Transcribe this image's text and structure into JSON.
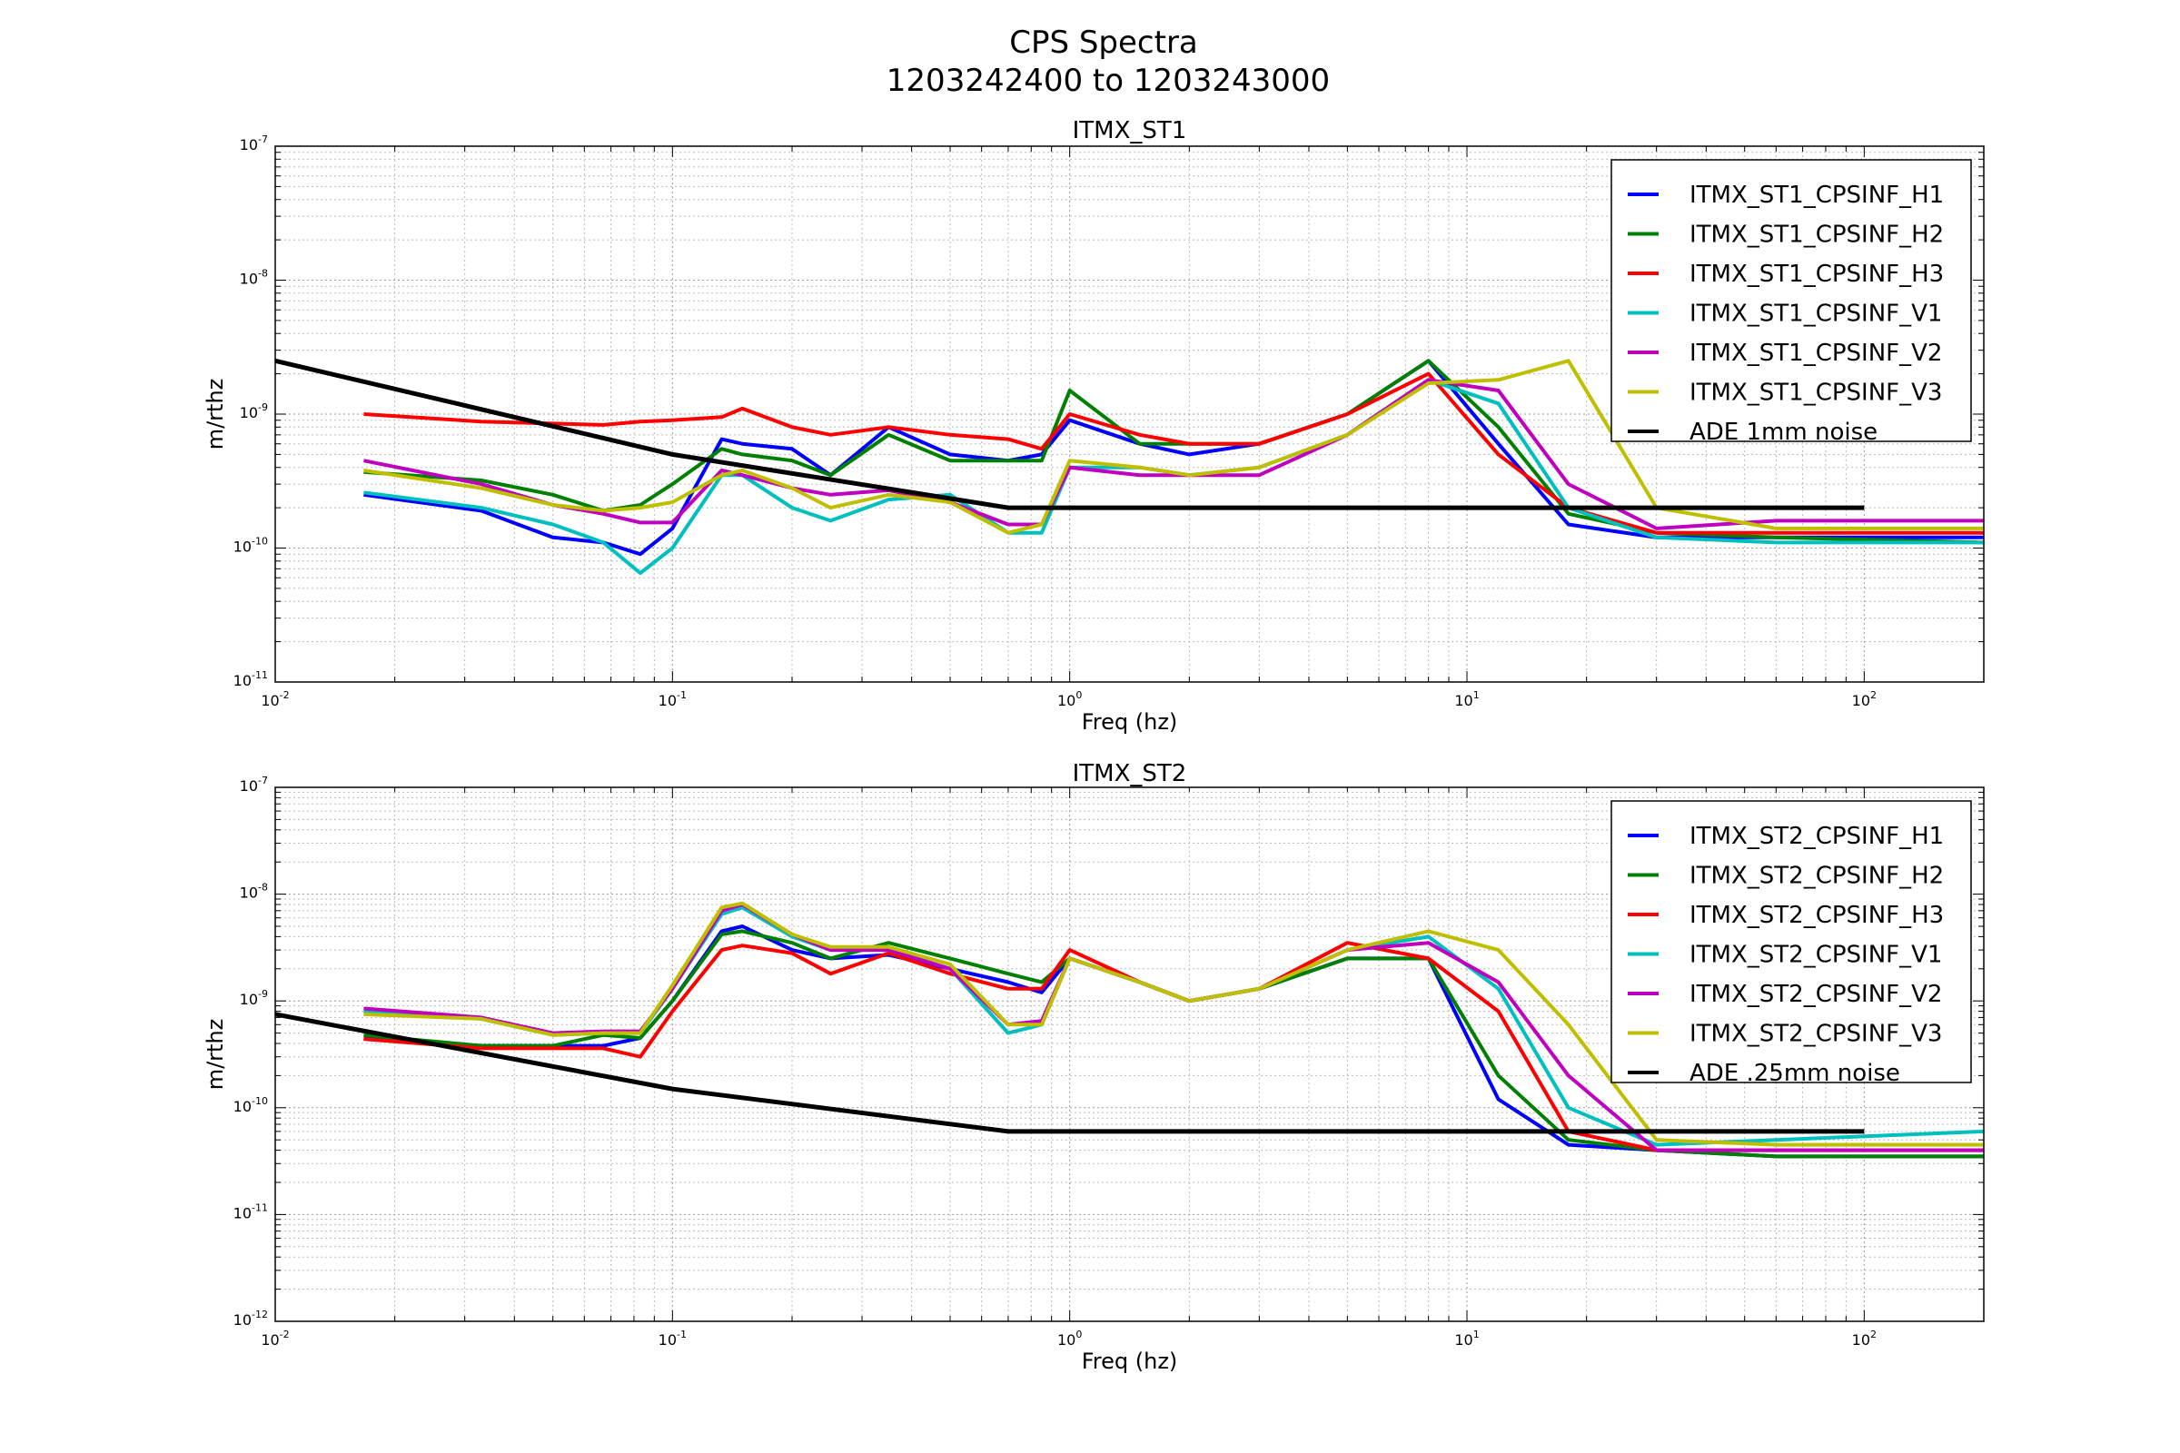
{
  "figure": {
    "title": "CPS Spectra",
    "subtitle": "1203242400 to 1203243000"
  },
  "colors": {
    "H1": "#0000ff",
    "H2": "#008000",
    "H3": "#ff0000",
    "V1": "#00bfbf",
    "V2": "#bf00bf",
    "V3": "#bfbf00",
    "noise": "#000000"
  },
  "chart_data": [
    {
      "type": "line",
      "title": "ITMX_ST1",
      "xlabel": "Freq (hz)",
      "ylabel": "m/rthz",
      "xscale": "log",
      "yscale": "log",
      "xlim": [
        0.01,
        200
      ],
      "ylim": [
        1e-11,
        1e-07
      ],
      "xtick_exponents": [
        -2,
        -1,
        0,
        1,
        2
      ],
      "ytick_exponents": [
        -11,
        -10,
        -9,
        -8,
        -7
      ],
      "grid": true,
      "legend_position": "top-right",
      "x": [
        0.0167,
        0.033,
        0.05,
        0.067,
        0.083,
        0.1,
        0.133,
        0.15,
        0.2,
        0.25,
        0.35,
        0.5,
        0.7,
        0.85,
        1,
        1.5,
        2,
        3,
        5,
        8,
        12,
        18,
        30,
        60,
        200
      ],
      "series": [
        {
          "name": "ITMX_ST1_CPSINF_H1",
          "color_key": "H1",
          "values": [
            2.5e-10,
            1.9e-10,
            1.2e-10,
            1.1e-10,
            9e-11,
            1.4e-10,
            6.5e-10,
            6e-10,
            5.5e-10,
            3.5e-10,
            8e-10,
            5e-10,
            4.5e-10,
            5e-10,
            9e-10,
            6e-10,
            5e-10,
            6e-10,
            1e-09,
            2.5e-09,
            6e-10,
            1.5e-10,
            1.2e-10,
            1.2e-10,
            1.2e-10
          ]
        },
        {
          "name": "ITMX_ST1_CPSINF_H2",
          "color_key": "H2",
          "values": [
            3.7e-10,
            3.2e-10,
            2.5e-10,
            1.9e-10,
            2.1e-10,
            3e-10,
            5.5e-10,
            5e-10,
            4.5e-10,
            3.5e-10,
            7e-10,
            4.5e-10,
            4.5e-10,
            4.5e-10,
            1.5e-09,
            6e-10,
            6e-10,
            6e-10,
            1e-09,
            2.5e-09,
            8e-10,
            1.8e-10,
            1.3e-10,
            1.2e-10,
            1.1e-10
          ]
        },
        {
          "name": "ITMX_ST1_CPSINF_H3",
          "color_key": "H3",
          "values": [
            1e-09,
            8.8e-10,
            8.5e-10,
            8.3e-10,
            8.8e-10,
            9e-10,
            9.5e-10,
            1.1e-09,
            8e-10,
            7e-10,
            8e-10,
            7e-10,
            6.5e-10,
            5.5e-10,
            1e-09,
            7e-10,
            6e-10,
            6e-10,
            1e-09,
            2e-09,
            5e-10,
            2e-10,
            1.3e-10,
            1.3e-10,
            1.3e-10
          ]
        },
        {
          "name": "ITMX_ST1_CPSINF_V1",
          "color_key": "V1",
          "values": [
            2.6e-10,
            2e-10,
            1.5e-10,
            1.1e-10,
            6.5e-11,
            1e-10,
            3.5e-10,
            3.5e-10,
            2e-10,
            1.6e-10,
            2.3e-10,
            2.5e-10,
            1.3e-10,
            1.3e-10,
            4e-10,
            4e-10,
            3.5e-10,
            4e-10,
            7e-10,
            1.8e-09,
            1.2e-09,
            2e-10,
            1.2e-10,
            1.1e-10,
            1.1e-10
          ]
        },
        {
          "name": "ITMX_ST1_CPSINF_V2",
          "color_key": "V2",
          "values": [
            4.5e-10,
            3e-10,
            2.1e-10,
            1.8e-10,
            1.55e-10,
            1.55e-10,
            3.8e-10,
            3.5e-10,
            2.8e-10,
            2.5e-10,
            2.7e-10,
            2.2e-10,
            1.5e-10,
            1.5e-10,
            4e-10,
            3.5e-10,
            3.5e-10,
            3.5e-10,
            7e-10,
            1.8e-09,
            1.5e-09,
            3e-10,
            1.4e-10,
            1.6e-10,
            1.6e-10
          ]
        },
        {
          "name": "ITMX_ST1_CPSINF_V3",
          "color_key": "V3",
          "values": [
            3.8e-10,
            2.8e-10,
            2.1e-10,
            1.9e-10,
            2e-10,
            2.2e-10,
            3.5e-10,
            3.8e-10,
            2.8e-10,
            2e-10,
            2.5e-10,
            2.2e-10,
            1.3e-10,
            1.5e-10,
            4.5e-10,
            4e-10,
            3.5e-10,
            4e-10,
            7e-10,
            1.7e-09,
            1.8e-09,
            2.5e-09,
            2e-10,
            1.4e-10,
            1.4e-10
          ]
        }
      ],
      "noise": {
        "name": "ADE 1mm noise",
        "x": [
          0.01,
          0.1,
          0.7,
          100
        ],
        "values": [
          2.5e-09,
          5e-10,
          2e-10,
          2e-10
        ]
      }
    },
    {
      "type": "line",
      "title": "ITMX_ST2",
      "xlabel": "Freq (hz)",
      "ylabel": "m/rthz",
      "xscale": "log",
      "yscale": "log",
      "xlim": [
        0.01,
        200
      ],
      "ylim": [
        1e-12,
        1e-07
      ],
      "xtick_exponents": [
        -2,
        -1,
        0,
        1,
        2
      ],
      "ytick_exponents": [
        -12,
        -11,
        -10,
        -9,
        -8,
        -7
      ],
      "grid": true,
      "legend_position": "top-right",
      "x": [
        0.0167,
        0.033,
        0.05,
        0.067,
        0.083,
        0.1,
        0.133,
        0.15,
        0.2,
        0.25,
        0.35,
        0.5,
        0.7,
        0.85,
        1,
        1.5,
        2,
        3,
        5,
        8,
        12,
        18,
        30,
        60,
        200
      ],
      "series": [
        {
          "name": "ITMX_ST2_CPSINF_H1",
          "color_key": "H1",
          "values": [
            4.5e-10,
            3.8e-10,
            3.8e-10,
            3.8e-10,
            4.5e-10,
            1e-09,
            4.5e-09,
            5e-09,
            3e-09,
            2.5e-09,
            2.7e-09,
            2e-09,
            1.5e-09,
            1.2e-09,
            2.5e-09,
            1.5e-09,
            1e-09,
            1.3e-09,
            2.5e-09,
            2.5e-09,
            1.2e-10,
            4.5e-11,
            4e-11,
            3.5e-11,
            3.5e-11
          ]
        },
        {
          "name": "ITMX_ST2_CPSINF_H2",
          "color_key": "H2",
          "values": [
            4.8e-10,
            3.8e-10,
            3.8e-10,
            4.8e-10,
            4.5e-10,
            1e-09,
            4.2e-09,
            4.5e-09,
            3.5e-09,
            2.5e-09,
            3.5e-09,
            2.5e-09,
            1.8e-09,
            1.5e-09,
            2.5e-09,
            1.5e-09,
            1e-09,
            1.3e-09,
            2.5e-09,
            2.5e-09,
            2e-10,
            5e-11,
            4e-11,
            3.5e-11,
            3.5e-11
          ]
        },
        {
          "name": "ITMX_ST2_CPSINF_H3",
          "color_key": "H3",
          "values": [
            4.4e-10,
            3.6e-10,
            3.6e-10,
            3.6e-10,
            3e-10,
            8e-10,
            3e-09,
            3.3e-09,
            2.8e-09,
            1.8e-09,
            2.8e-09,
            1.8e-09,
            1.3e-09,
            1.3e-09,
            3e-09,
            1.5e-09,
            1e-09,
            1.3e-09,
            3.5e-09,
            2.5e-09,
            8e-10,
            6e-11,
            4e-11,
            4e-11,
            4e-11
          ]
        },
        {
          "name": "ITMX_ST2_CPSINF_V1",
          "color_key": "V1",
          "values": [
            8e-10,
            6.8e-10,
            4.8e-10,
            5e-10,
            5e-10,
            1.3e-09,
            6.5e-09,
            7.5e-09,
            4e-09,
            3e-09,
            3e-09,
            2e-09,
            5e-10,
            6e-10,
            2.5e-09,
            1.5e-09,
            1e-09,
            1.3e-09,
            3e-09,
            4e-09,
            1.3e-09,
            1e-10,
            4.5e-11,
            5e-11,
            6e-11
          ]
        },
        {
          "name": "ITMX_ST2_CPSINF_V2",
          "color_key": "V2",
          "values": [
            8.5e-10,
            7e-10,
            5e-10,
            5.2e-10,
            5.2e-10,
            1.3e-09,
            7e-09,
            8e-09,
            4.2e-09,
            3e-09,
            3e-09,
            2e-09,
            6e-10,
            6.5e-10,
            2.5e-09,
            1.5e-09,
            1e-09,
            1.3e-09,
            3e-09,
            3.5e-09,
            1.5e-09,
            2e-10,
            4e-11,
            4e-11,
            4e-11
          ]
        },
        {
          "name": "ITMX_ST2_CPSINF_V3",
          "color_key": "V3",
          "values": [
            7.5e-10,
            6.8e-10,
            4.8e-10,
            5e-10,
            5e-10,
            1.4e-09,
            7.5e-09,
            8.2e-09,
            4.2e-09,
            3.2e-09,
            3.2e-09,
            2.2e-09,
            6e-10,
            6e-10,
            2.5e-09,
            1.5e-09,
            1e-09,
            1.3e-09,
            3e-09,
            4.5e-09,
            3e-09,
            6e-10,
            5e-11,
            4.5e-11,
            4.5e-11
          ]
        }
      ],
      "noise": {
        "name": "ADE .25mm noise",
        "x": [
          0.01,
          0.1,
          0.7,
          100
        ],
        "values": [
          7.5e-10,
          1.5e-10,
          6e-11,
          6e-11
        ]
      }
    }
  ]
}
